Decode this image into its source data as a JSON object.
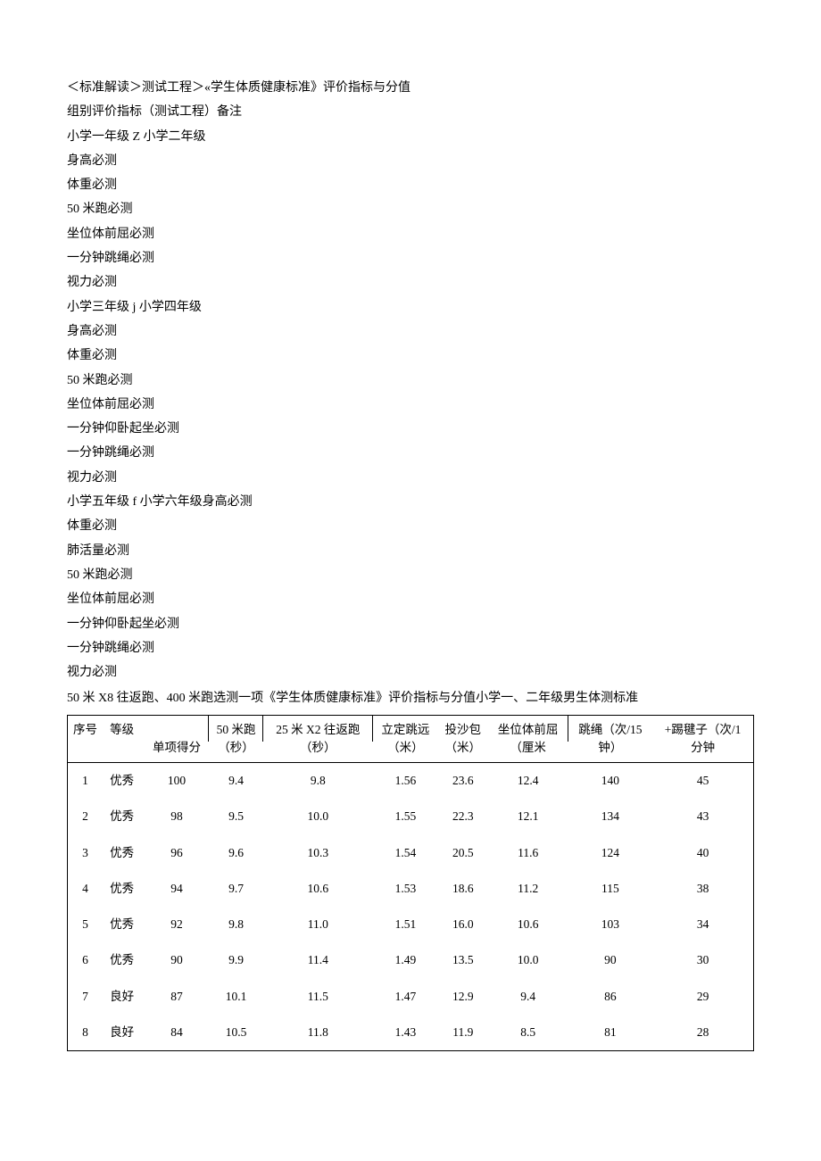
{
  "intro_lines": [
    "＜标准解读＞测试工程＞«学生体质健康标准》评价指标与分值",
    "组别评价指标（测试工程）备注",
    "小学一年级 Z 小学二年级",
    "身高必测",
    "体重必测",
    "50 米跑必测",
    "坐位体前屈必测",
    "一分钟跳绳必测",
    "视力必测",
    "小学三年级 j 小学四年级",
    "身高必测",
    "体重必测",
    "50 米跑必测",
    "坐位体前屈必测",
    "一分钟仰卧起坐必测",
    "一分钟跳绳必测",
    "视力必测",
    "小学五年级 f 小学六年级身高必测",
    "体重必测",
    "肺活量必测",
    "50 米跑必测",
    "坐位体前屈必测",
    "一分钟仰卧起坐必测",
    "一分钟跳绳必测",
    "视力必测"
  ],
  "table_heading": "50 米 X8 往返跑、400 米跑选测一项《学生体质健康标准》评价指标与分值小学一、二年级男生体测标准",
  "table": {
    "columns": [
      {
        "l1": "序号",
        "l2": ""
      },
      {
        "l1": "等级",
        "l2": ""
      },
      {
        "l1": "",
        "l2": "单项得分"
      },
      {
        "l1": "50 米跑",
        "l2": "（秒）"
      },
      {
        "l1": "25 米 X2 往返跑",
        "l2": "（秒）"
      },
      {
        "l1": "立定跳远",
        "l2": "（米）"
      },
      {
        "l1": "投沙包",
        "l2": "（米）"
      },
      {
        "l1": "坐位体前屈",
        "l2": "（厘米"
      },
      {
        "l1": "跳绳（次/15",
        "l2": "钟）"
      },
      {
        "l1": "+踢毽子（次/1",
        "l2": "分钟"
      }
    ],
    "rows": [
      [
        "1",
        "优秀",
        "100",
        "9.4",
        "9.8",
        "1.56",
        "23.6",
        "12.4",
        "140",
        "45"
      ],
      [
        "2",
        "优秀",
        "98",
        "9.5",
        "10.0",
        "1.55",
        "22.3",
        "12.1",
        "134",
        "43"
      ],
      [
        "3",
        "优秀",
        "96",
        "9.6",
        "10.3",
        "1.54",
        "20.5",
        "11.6",
        "124",
        "40"
      ],
      [
        "4",
        "优秀",
        "94",
        "9.7",
        "10.6",
        "1.53",
        "18.6",
        "11.2",
        "115",
        "38"
      ],
      [
        "5",
        "优秀",
        "92",
        "9.8",
        "11.0",
        "1.51",
        "16.0",
        "10.6",
        "103",
        "34"
      ],
      [
        "6",
        "优秀",
        "90",
        "9.9",
        "11.4",
        "1.49",
        "13.5",
        "10.0",
        "90",
        "30"
      ],
      [
        "7",
        "良好",
        "87",
        "10.1",
        "11.5",
        "1.47",
        "12.9",
        "9.4",
        "86",
        "29"
      ],
      [
        "8",
        "良好",
        "84",
        "10.5",
        "11.8",
        "1.43",
        "11.9",
        "8.5",
        "81",
        "28"
      ]
    ]
  },
  "colors": {
    "text": "#000000",
    "background": "#ffffff",
    "border": "#000000"
  }
}
